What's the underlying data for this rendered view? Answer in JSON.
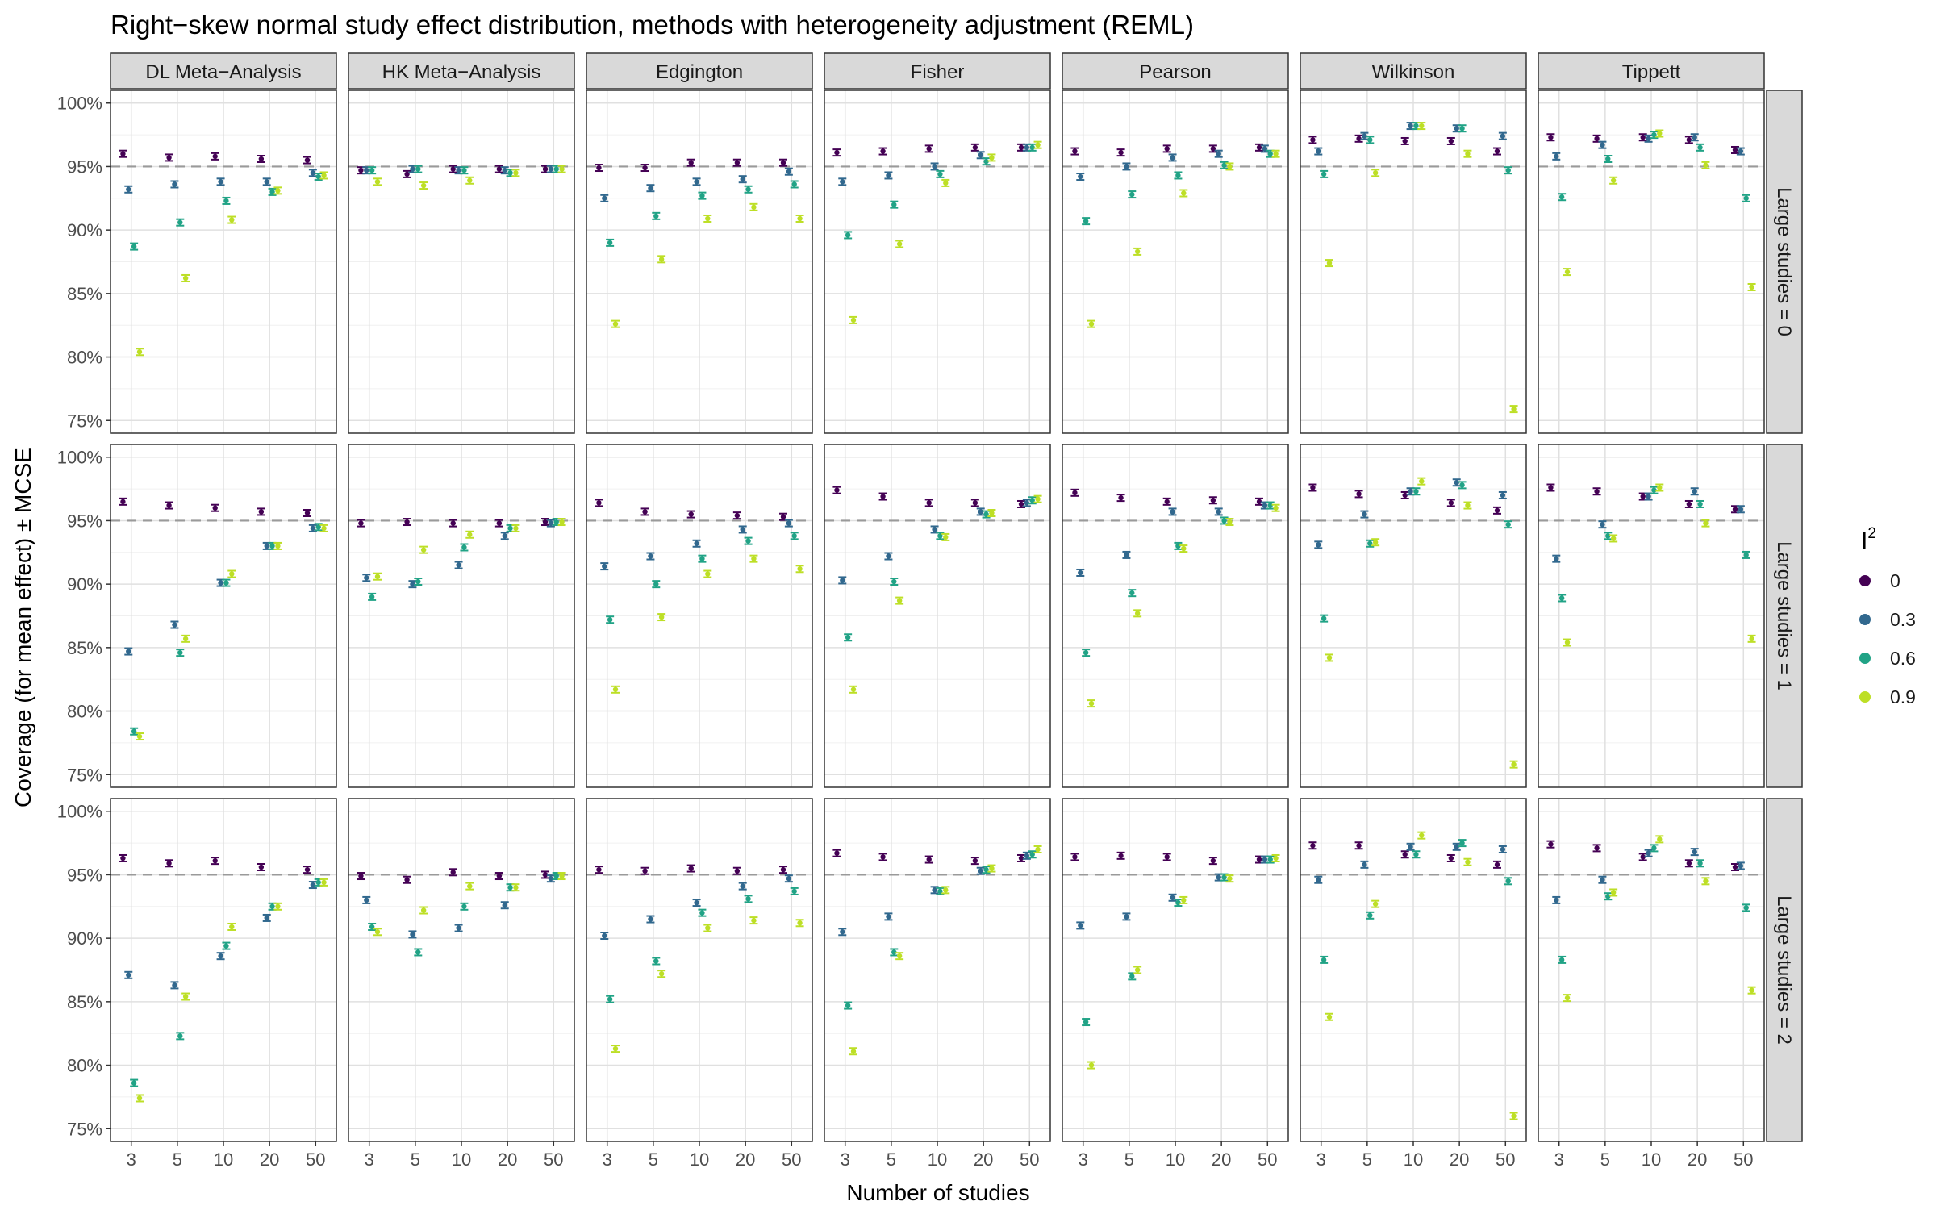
{
  "chart_data": {
    "type": "scatter",
    "title": "Right−skew normal study effect distribution, methods with heterogeneity adjustment (REML)",
    "xlabel": "Number of studies",
    "ylabel": "Coverage (for mean effect) ± MCSE",
    "x_ticks": [
      "3",
      "5",
      "10",
      "20",
      "50"
    ],
    "y_ticks": [
      "75%",
      "80%",
      "85%",
      "90%",
      "95%",
      "100%"
    ],
    "y_range": [
      74,
      101
    ],
    "reference_line": 95,
    "grid": true,
    "legend": {
      "title": "I",
      "title_sup": "2",
      "position": "right",
      "entries": [
        "0",
        "0.3",
        "0.6",
        "0.9"
      ],
      "colors": [
        "#440154",
        "#31688e",
        "#21a386",
        "#bddf26"
      ]
    },
    "facet_cols": [
      "DL Meta−Analysis",
      "HK Meta−Analysis",
      "Edgington",
      "Fisher",
      "Pearson",
      "Wilkinson",
      "Tippett"
    ],
    "facet_rows": [
      "Large studies = 0",
      "Large studies = 1",
      "Large studies = 2"
    ],
    "series_order": [
      "0",
      "0.3",
      "0.6",
      "0.9"
    ],
    "panels": [
      [
        [
          [
            96.0,
            93.2,
            88.7,
            80.4
          ],
          [
            95.7,
            93.6,
            90.6,
            86.2
          ],
          [
            95.8,
            93.8,
            92.3,
            90.8
          ],
          [
            95.6,
            93.8,
            93.0,
            93.1
          ],
          [
            95.5,
            94.5,
            94.2,
            94.3
          ]
        ],
        [
          [
            94.7,
            94.7,
            94.7,
            93.8
          ],
          [
            94.4,
            94.8,
            94.8,
            93.5
          ],
          [
            94.8,
            94.7,
            94.7,
            93.9
          ],
          [
            94.8,
            94.7,
            94.5,
            94.5
          ],
          [
            94.8,
            94.8,
            94.8,
            94.8
          ]
        ],
        [
          [
            94.9,
            92.5,
            89.0,
            82.6
          ],
          [
            94.9,
            93.3,
            91.1,
            87.7
          ],
          [
            95.3,
            93.8,
            92.7,
            90.9
          ],
          [
            95.3,
            94.0,
            93.2,
            91.8
          ],
          [
            95.3,
            94.6,
            93.6,
            90.9
          ]
        ],
        [
          [
            96.1,
            93.8,
            89.6,
            82.9
          ],
          [
            96.2,
            94.3,
            92.0,
            88.9
          ],
          [
            96.4,
            95.0,
            94.4,
            93.7
          ],
          [
            96.5,
            95.9,
            95.4,
            95.7
          ],
          [
            96.5,
            96.5,
            96.5,
            96.7
          ]
        ],
        [
          [
            96.2,
            94.2,
            90.7,
            82.6
          ],
          [
            96.1,
            95.0,
            92.8,
            88.3
          ],
          [
            96.4,
            95.7,
            94.3,
            92.9
          ],
          [
            96.4,
            96.0,
            95.1,
            95.0
          ],
          [
            96.5,
            96.4,
            96.0,
            96.0
          ]
        ],
        [
          [
            97.1,
            96.2,
            94.4,
            87.4
          ],
          [
            97.2,
            97.4,
            97.1,
            94.5
          ],
          [
            97.0,
            98.2,
            98.2,
            98.2
          ],
          [
            97.0,
            98.0,
            98.0,
            96.0
          ],
          [
            96.2,
            97.4,
            94.7,
            75.9
          ]
        ],
        [
          [
            97.3,
            95.8,
            92.6,
            86.7
          ],
          [
            97.2,
            96.7,
            95.6,
            93.9
          ],
          [
            97.3,
            97.2,
            97.5,
            97.6
          ],
          [
            97.1,
            97.3,
            96.5,
            95.1
          ],
          [
            96.3,
            96.2,
            92.5,
            85.5
          ]
        ]
      ],
      [
        [
          [
            96.5,
            84.7,
            78.4,
            78.0
          ],
          [
            96.2,
            86.8,
            84.6,
            85.7
          ],
          [
            96.0,
            90.1,
            90.1,
            90.8
          ],
          [
            95.7,
            93.0,
            93.0,
            93.0
          ],
          [
            95.6,
            94.4,
            94.5,
            94.4
          ]
        ],
        [
          [
            94.8,
            90.5,
            89.0,
            90.6
          ],
          [
            94.9,
            90.0,
            90.2,
            92.7
          ],
          [
            94.8,
            91.5,
            92.9,
            93.9
          ],
          [
            94.8,
            93.8,
            94.4,
            94.4
          ],
          [
            94.9,
            94.8,
            94.9,
            94.9
          ]
        ],
        [
          [
            96.4,
            91.4,
            87.2,
            81.7
          ],
          [
            95.7,
            92.2,
            90.0,
            87.4
          ],
          [
            95.5,
            93.2,
            92.0,
            90.8
          ],
          [
            95.4,
            94.3,
            93.4,
            92.0
          ],
          [
            95.3,
            94.8,
            93.8,
            91.2
          ]
        ],
        [
          [
            97.4,
            90.3,
            85.8,
            81.7
          ],
          [
            96.9,
            92.2,
            90.2,
            88.7
          ],
          [
            96.4,
            94.3,
            93.8,
            93.7
          ],
          [
            96.4,
            95.7,
            95.5,
            95.6
          ],
          [
            96.3,
            96.4,
            96.6,
            96.7
          ]
        ],
        [
          [
            97.2,
            90.9,
            84.6,
            80.6
          ],
          [
            96.8,
            92.3,
            89.3,
            87.7
          ],
          [
            96.5,
            95.7,
            93.0,
            92.8
          ],
          [
            96.6,
            95.7,
            95.0,
            94.9
          ],
          [
            96.5,
            96.2,
            96.2,
            96.0
          ]
        ],
        [
          [
            97.6,
            93.1,
            87.3,
            84.2
          ],
          [
            97.1,
            95.5,
            93.2,
            93.3
          ],
          [
            97.0,
            97.3,
            97.3,
            98.1
          ],
          [
            96.4,
            98.0,
            97.8,
            96.2
          ],
          [
            95.8,
            97.0,
            94.7,
            75.8
          ]
        ],
        [
          [
            97.6,
            92.0,
            88.9,
            85.4
          ],
          [
            97.3,
            94.7,
            93.8,
            93.6
          ],
          [
            96.9,
            96.9,
            97.4,
            97.6
          ],
          [
            96.3,
            97.3,
            96.3,
            94.8
          ],
          [
            95.9,
            95.9,
            92.3,
            85.7
          ]
        ]
      ],
      [
        [
          [
            96.3,
            87.1,
            78.6,
            77.4
          ],
          [
            95.9,
            86.3,
            82.3,
            85.4
          ],
          [
            96.1,
            88.6,
            89.4,
            90.9
          ],
          [
            95.6,
            91.6,
            92.5,
            92.5
          ],
          [
            95.4,
            94.2,
            94.4,
            94.4
          ]
        ],
        [
          [
            94.9,
            93.0,
            90.9,
            90.5
          ],
          [
            94.6,
            90.3,
            88.9,
            92.2
          ],
          [
            95.2,
            90.8,
            92.5,
            94.1
          ],
          [
            94.9,
            92.6,
            94.0,
            94.0
          ],
          [
            95.0,
            94.7,
            94.9,
            94.9
          ]
        ],
        [
          [
            95.4,
            90.2,
            85.2,
            81.3
          ],
          [
            95.3,
            91.5,
            88.2,
            87.2
          ],
          [
            95.5,
            92.8,
            92.0,
            90.8
          ],
          [
            95.3,
            94.1,
            93.1,
            91.4
          ],
          [
            95.4,
            94.7,
            93.7,
            91.2
          ]
        ],
        [
          [
            96.7,
            90.5,
            84.7,
            81.1
          ],
          [
            96.4,
            91.7,
            88.9,
            88.6
          ],
          [
            96.2,
            93.8,
            93.7,
            93.8
          ],
          [
            96.1,
            95.3,
            95.4,
            95.5
          ],
          [
            96.3,
            96.5,
            96.6,
            97.0
          ]
        ],
        [
          [
            96.4,
            91.0,
            83.4,
            80.0
          ],
          [
            96.5,
            91.7,
            87.0,
            87.5
          ],
          [
            96.4,
            93.2,
            92.8,
            93.0
          ],
          [
            96.1,
            94.8,
            94.8,
            94.7
          ],
          [
            96.2,
            96.2,
            96.2,
            96.3
          ]
        ],
        [
          [
            97.3,
            94.6,
            88.3,
            83.8
          ],
          [
            97.3,
            95.8,
            91.8,
            92.7
          ],
          [
            96.6,
            97.2,
            96.6,
            98.1
          ],
          [
            96.3,
            97.2,
            97.5,
            96.0
          ],
          [
            95.8,
            97.0,
            94.5,
            76.0
          ]
        ],
        [
          [
            97.4,
            93.0,
            88.3,
            85.3
          ],
          [
            97.1,
            94.6,
            93.3,
            93.6
          ],
          [
            96.4,
            96.7,
            97.1,
            97.8
          ],
          [
            95.9,
            96.8,
            95.9,
            94.5
          ],
          [
            95.6,
            95.7,
            92.4,
            85.9
          ]
        ]
      ]
    ]
  }
}
